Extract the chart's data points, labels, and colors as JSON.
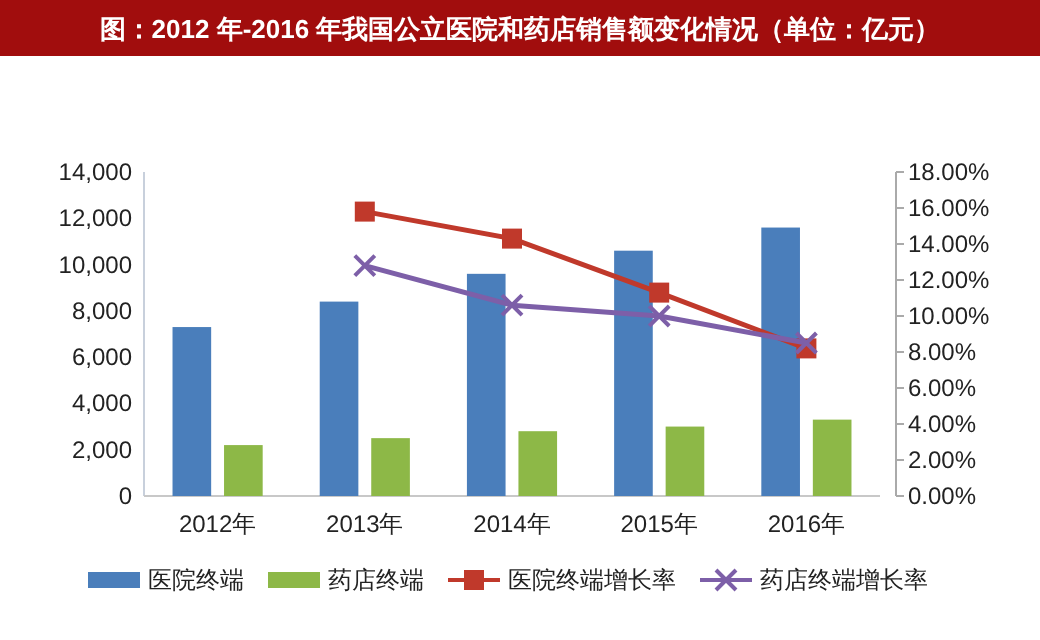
{
  "chart_data": {
    "type": "bar",
    "title": "图：2012 年-2016 年我国公立医院和药店销售额变化情况（单位：亿元）",
    "categories": [
      "2012年",
      "2013年",
      "2014年",
      "2015年",
      "2016年"
    ],
    "series": [
      {
        "name": "医院终端",
        "color": "#4a7ebb",
        "values": [
          7300,
          8400,
          9600,
          10600,
          11600
        ]
      },
      {
        "name": "药店终端",
        "color": "#8db847",
        "values": [
          2200,
          2500,
          2800,
          3000,
          3300
        ]
      },
      {
        "name": "医院终端增长率",
        "type": "line",
        "axis": "y2",
        "marker": "square",
        "color": "#c0392b",
        "values": [
          null,
          15.8,
          14.3,
          11.3,
          8.2
        ]
      },
      {
        "name": "药店终端增长率",
        "type": "line",
        "axis": "y2",
        "marker": "cross",
        "color": "#7d5fa8",
        "values": [
          null,
          12.8,
          10.6,
          10.0,
          8.5
        ]
      }
    ],
    "ylim": [
      0,
      14000
    ],
    "yticks": [
      {
        "value": 0,
        "label": "0"
      },
      {
        "value": 2000,
        "label": "2,000"
      },
      {
        "value": 4000,
        "label": "4,000"
      },
      {
        "value": 6000,
        "label": "6,000"
      },
      {
        "value": 8000,
        "label": "8,000"
      },
      {
        "value": 10000,
        "label": "10,000"
      },
      {
        "value": 12000,
        "label": "12,000"
      },
      {
        "value": 14000,
        "label": "14,000"
      }
    ],
    "y2lim": [
      0,
      18
    ],
    "y2ticks": [
      {
        "value": 0,
        "label": "0.00%"
      },
      {
        "value": 2,
        "label": "2.00%"
      },
      {
        "value": 4,
        "label": "4.00%"
      },
      {
        "value": 6,
        "label": "6.00%"
      },
      {
        "value": 8,
        "label": "8.00%"
      },
      {
        "value": 10,
        "label": "10.00%"
      },
      {
        "value": 12,
        "label": "12.00%"
      },
      {
        "value": 14,
        "label": "14.00%"
      },
      {
        "value": 16,
        "label": "16.00%"
      },
      {
        "value": 18,
        "label": "18.00%"
      }
    ],
    "grid": false,
    "legend": "bottom"
  }
}
